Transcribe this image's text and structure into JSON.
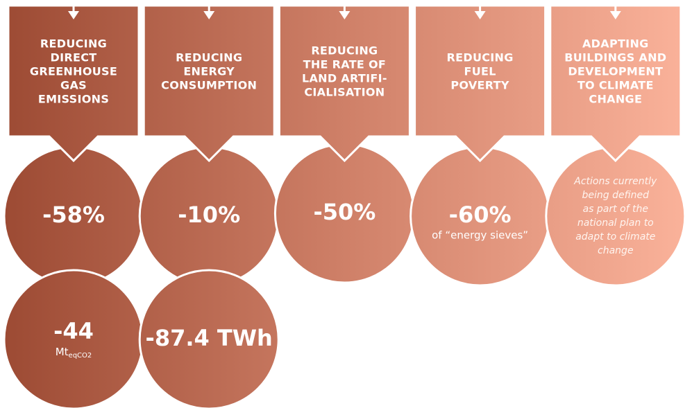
{
  "columns": [
    {
      "header": [
        "REDUCING",
        "DIRECT",
        "GREENHOUSE",
        "GAS",
        "EMISSIONS"
      ],
      "circles": [
        {
          "value": "-58%"
        },
        {
          "value": "-44",
          "unit": "Mt",
          "unit_sub": "eqCO2"
        }
      ]
    },
    {
      "header": [
        "REDUCING",
        "ENERGY",
        "CONSUMPTION"
      ],
      "circles": [
        {
          "value": "-10%"
        },
        {
          "value": "-87.4 TWh"
        }
      ]
    },
    {
      "header": [
        "REDUCING",
        "THE RATE OF",
        "LAND ARTIFI-",
        "CIALISATION"
      ],
      "circles": [
        {
          "value": "-50%"
        }
      ]
    },
    {
      "header": [
        "REDUCING",
        "FUEL",
        "POVERTY"
      ],
      "circles": [
        {
          "value": "-60%",
          "note": "of “energy sieves”"
        }
      ]
    },
    {
      "header": [
        "ADAPTING",
        "BUILDINGS AND",
        "DEVELOPMENT",
        "TO CLIMATE",
        "CHANGE"
      ],
      "circles": [
        {
          "text": [
            "Actions currently",
            "being defined",
            "as part of the",
            "national plan to",
            "adapt to climate",
            "change"
          ]
        }
      ]
    }
  ]
}
